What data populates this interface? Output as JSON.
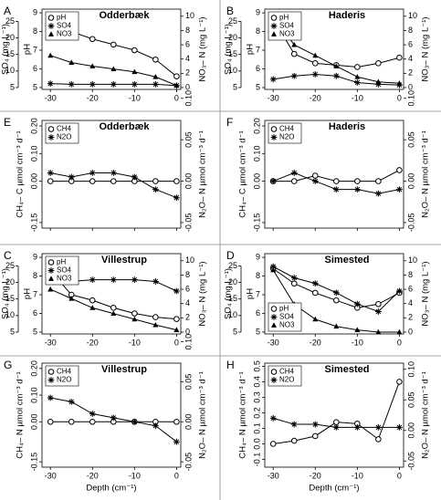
{
  "chart_data": [
    {
      "type": "line",
      "panel": "A",
      "title": "Odderbæk",
      "x": [
        -30,
        -25,
        -20,
        -15,
        -10,
        -5,
        0
      ],
      "xlim": [
        -32,
        1
      ],
      "xticks": [
        -30,
        -20,
        -10,
        0
      ],
      "xtick_labels": true,
      "ylabel": "pH",
      "ylim": [
        4.9,
        9.2
      ],
      "yticks": [
        5,
        6,
        7,
        8,
        9
      ],
      "y3label": "SO₄ (mg L⁻¹)",
      "y3lim": [
        4.44,
        28.7
      ],
      "y3ticks": [
        5,
        10,
        15,
        20,
        25
      ],
      "y2label": "NO₃– N (mg L⁻¹)",
      "y2lim": [
        -0.26,
        11.0
      ],
      "y2ticks": [
        0,
        2,
        4,
        6,
        8,
        10
      ],
      "legend": "upper left",
      "series": [
        {
          "name": "pH",
          "color": "#000",
          "marker": "circle",
          "axis": "y",
          "values": [
            8.4,
            8.0,
            7.6,
            7.3,
            7.0,
            6.5,
            5.6
          ]
        },
        {
          "name": "SO4",
          "color": "#000",
          "marker": "star",
          "axis": "y3",
          "values": [
            6.2,
            6.0,
            6.0,
            6.0,
            6.0,
            6.0,
            5.6
          ]
        },
        {
          "name": "NO3",
          "color": "#000",
          "marker": "triangle",
          "axis": "y2",
          "values": [
            4.5,
            3.5,
            3.0,
            2.6,
            2.2,
            1.5,
            0.3
          ]
        }
      ]
    },
    {
      "type": "line",
      "panel": "B",
      "title": "Haderis",
      "x": [
        -30,
        -25,
        -20,
        -15,
        -10,
        -5,
        0
      ],
      "xlim": [
        -32,
        1
      ],
      "xticks": [
        -30,
        -20,
        -10,
        0
      ],
      "xtick_labels": true,
      "ylabel": "pH",
      "ylim": [
        4.9,
        9.2
      ],
      "yticks": [
        5,
        6,
        7,
        8,
        9
      ],
      "y3label": "SO₄ (mg L⁻¹)",
      "y3lim": [
        4.44,
        28.7
      ],
      "y3ticks": [
        5,
        10,
        15,
        20,
        25
      ],
      "y2label": "NO₃– N (mg L⁻¹)",
      "y2lim": [
        -0.26,
        11.0
      ],
      "y2ticks": [
        0,
        2,
        4,
        6,
        8,
        10
      ],
      "legend": "upper left",
      "series": [
        {
          "name": "pH",
          "color": "#000",
          "marker": "circle",
          "axis": "y",
          "values": [
            8.7,
            6.8,
            6.3,
            6.2,
            6.1,
            6.3,
            6.6
          ]
        },
        {
          "name": "SO4",
          "color": "#000",
          "marker": "star",
          "axis": "y3",
          "values": [
            7.5,
            8.5,
            9.0,
            8.5,
            6.5,
            6.0,
            5.8
          ]
        },
        {
          "name": "NO3",
          "color": "#000",
          "marker": "triangle",
          "axis": "y2",
          "values": [
            10.0,
            6.0,
            4.5,
            3.0,
            1.5,
            0.8,
            0.6
          ]
        }
      ]
    },
    {
      "type": "line",
      "panel": "E",
      "title": "Odderbæk",
      "x": [
        -30,
        -25,
        -20,
        -15,
        -10,
        -5,
        0
      ],
      "xlim": [
        -32,
        1
      ],
      "xticks": [
        -30,
        -20,
        -10,
        0
      ],
      "xtick_labels": false,
      "ylabel": "CH₄– C µmol cm⁻³ d⁻¹",
      "ylim": [
        -0.17,
        0.22
      ],
      "yticks": [
        {
          "value": 0.2,
          "label": "0.20"
        },
        {
          "value": 0.1,
          "label": "0.10"
        },
        {
          "value": 0,
          "label": "0.00"
        },
        -0.15
      ],
      "y2label": "N₂O– N µmol cm⁻³ d⁻¹",
      "y2lim": [
        -0.0567,
        0.0733
      ],
      "y2ticks": [
        {
          "value": 0.1,
          "label": "0.10"
        },
        0.05,
        {
          "value": 0,
          "label": "0.00"
        },
        -0.05
      ],
      "legend": "upper left",
      "series": [
        {
          "name": "CH4",
          "color": "#000",
          "marker": "circle",
          "axis": "y",
          "values": [
            0,
            0,
            0,
            0,
            0,
            0,
            0
          ]
        },
        {
          "name": "N2O",
          "color": "#000",
          "marker": "star",
          "axis": "y2",
          "values": [
            0.01,
            0.005,
            0.01,
            0.01,
            0.005,
            -0.01,
            -0.02
          ]
        }
      ]
    },
    {
      "type": "line",
      "panel": "F",
      "title": "Haderis",
      "x": [
        -30,
        -25,
        -20,
        -15,
        -10,
        -5,
        0
      ],
      "xlim": [
        -32,
        1
      ],
      "xticks": [
        -30,
        -20,
        -10,
        0
      ],
      "xtick_labels": false,
      "ylabel": "CH₄– C µmol cm⁻³ d⁻¹",
      "ylim": [
        -0.17,
        0.22
      ],
      "yticks": [
        {
          "value": 0.2,
          "label": "0.20"
        },
        {
          "value": 0.1,
          "label": "0.10"
        },
        {
          "value": 0,
          "label": "0.00"
        },
        -0.15
      ],
      "y2label": "N₂O– N µmol cm⁻³ d⁻¹",
      "y2lim": [
        -0.0567,
        0.0733
      ],
      "y2ticks": [
        {
          "value": 0.1,
          "label": "0.10"
        },
        0.05,
        {
          "value": 0,
          "label": "0.00"
        },
        -0.05
      ],
      "legend": "upper left",
      "series": [
        {
          "name": "CH4",
          "color": "#000",
          "marker": "circle",
          "axis": "y",
          "values": [
            0,
            0,
            0.02,
            0,
            0,
            0,
            0.04
          ]
        },
        {
          "name": "N2O",
          "color": "#000",
          "marker": "star",
          "axis": "y2",
          "values": [
            0,
            0.01,
            0,
            -0.01,
            -0.01,
            -0.015,
            -0.01
          ]
        }
      ]
    },
    {
      "type": "line",
      "panel": "C",
      "title": "Villestrup",
      "x": [
        -30,
        -25,
        -20,
        -15,
        -10,
        -5,
        0
      ],
      "xlim": [
        -32,
        1
      ],
      "xticks": [
        -30,
        -20,
        -10,
        0
      ],
      "xtick_labels": true,
      "ylabel": "pH",
      "ylim": [
        4.9,
        9.2
      ],
      "yticks": [
        5,
        6,
        7,
        8,
        9
      ],
      "y3label": "SO₄ (mg L⁻¹)",
      "y3lim": [
        4.44,
        28.7
      ],
      "y3ticks": [
        5,
        10,
        15,
        20,
        25
      ],
      "y2label": "NO₃– N (mg L⁻¹)",
      "y2lim": [
        -0.26,
        11.0
      ],
      "y2ticks": [
        0,
        2,
        4,
        6,
        8,
        10
      ],
      "legend": "upper left",
      "series": [
        {
          "name": "pH",
          "color": "#000",
          "marker": "circle",
          "axis": "y",
          "values": [
            8.3,
            7.0,
            6.7,
            6.3,
            6.0,
            5.8,
            5.7
          ]
        },
        {
          "name": "SO4",
          "color": "#000",
          "marker": "star",
          "axis": "y3",
          "values": [
            20.8,
            20.3,
            20.8,
            20.8,
            20.8,
            20.3,
            17.4
          ]
        },
        {
          "name": "NO3",
          "color": "#000",
          "marker": "triangle",
          "axis": "y2",
          "values": [
            6.0,
            4.7,
            3.4,
            2.6,
            1.8,
            1.0,
            0.3
          ]
        }
      ]
    },
    {
      "type": "line",
      "panel": "D",
      "title": "Simested",
      "x": [
        -30,
        -25,
        -20,
        -15,
        -10,
        -5,
        0
      ],
      "xlim": [
        -32,
        1
      ],
      "xticks": [
        -30,
        -20,
        -10,
        0
      ],
      "xtick_labels": true,
      "ylabel": "pH",
      "ylim": [
        4.9,
        9.2
      ],
      "yticks": [
        5,
        6,
        7,
        8,
        9
      ],
      "y3label": "SO₄ (mg L⁻¹)",
      "y3lim": [
        4.44,
        28.7
      ],
      "y3ticks": [
        5,
        10,
        15,
        20,
        25
      ],
      "y2label": "NO₃– N (mg L⁻¹)",
      "y2lim": [
        -0.26,
        11.0
      ],
      "y2ticks": [
        0,
        2,
        4,
        6,
        8,
        10
      ],
      "legend": "lower left",
      "series": [
        {
          "name": "pH",
          "color": "#000",
          "marker": "circle",
          "axis": "y",
          "values": [
            8.4,
            7.6,
            7.1,
            6.7,
            6.3,
            6.5,
            7.1
          ]
        },
        {
          "name": "SO4",
          "color": "#000",
          "marker": "star",
          "axis": "y3",
          "values": [
            24.8,
            21.4,
            19.7,
            16.9,
            13.5,
            11.2,
            17.4
          ]
        },
        {
          "name": "NO3",
          "color": "#000",
          "marker": "triangle",
          "axis": "y2",
          "values": [
            8.7,
            3.9,
            1.8,
            0.8,
            0.3,
            0,
            0
          ]
        }
      ]
    },
    {
      "type": "line",
      "panel": "G",
      "title": "Villestrup",
      "x": [
        -30,
        -25,
        -20,
        -15,
        -10,
        -5,
        0
      ],
      "xlim": [
        -32,
        1
      ],
      "xticks": [
        -30,
        -20,
        -10,
        0
      ],
      "xtick_labels": true,
      "xlabel": "Depth (cm⁻¹)",
      "ylabel": "CH₄– N µmol cm⁻³ d⁻¹",
      "ylim": [
        -0.17,
        0.22
      ],
      "yticks": [
        {
          "value": 0.2,
          "label": "0.20"
        },
        {
          "value": 0.1,
          "label": "0.10"
        },
        {
          "value": 0,
          "label": "0.00"
        },
        -0.15
      ],
      "y2label": "N₂O– N µmol cm⁻³ d⁻¹",
      "y2lim": [
        -0.0567,
        0.0733
      ],
      "y2ticks": [
        {
          "value": 0.1,
          "label": "0.10"
        },
        0.05,
        {
          "value": 0,
          "label": "0.00"
        },
        -0.05
      ],
      "legend": "upper left",
      "series": [
        {
          "name": "CH4",
          "color": "#000",
          "marker": "circle",
          "axis": "y",
          "values": [
            0,
            0,
            0,
            0,
            0,
            0,
            0
          ]
        },
        {
          "name": "N2O",
          "color": "#000",
          "marker": "star",
          "axis": "y2",
          "values": [
            0.03,
            0.025,
            0.01,
            0.005,
            0,
            -0.005,
            -0.025
          ]
        }
      ]
    },
    {
      "type": "line",
      "panel": "H",
      "title": "Simested",
      "x": [
        -30,
        -25,
        -20,
        -15,
        -10,
        -5,
        0
      ],
      "xlim": [
        -32,
        1
      ],
      "xticks": [
        -30,
        -20,
        -10,
        0
      ],
      "xtick_labels": true,
      "xlabel": "Depth (cm⁻¹)",
      "ylabel": "CH₄– N µmol cm⁻³ d⁻¹",
      "ylim": [
        -0.15,
        0.52
      ],
      "yticks": [
        0.5,
        0.4,
        0.3,
        0.2,
        0.1,
        {
          "value": 0,
          "label": "0.0"
        },
        -0.1
      ],
      "y2label": "N₂O– N µmol cm⁻³ d⁻¹",
      "y2lim": [
        -0.06,
        0.11
      ],
      "y2ticks": [
        {
          "value": 0.1,
          "label": "0.10"
        },
        0.05,
        {
          "value": 0,
          "label": "0.00"
        },
        -0.05
      ],
      "legend": "upper left",
      "series": [
        {
          "name": "CH4",
          "color": "#000",
          "marker": "circle",
          "axis": "y",
          "values": [
            0,
            0.02,
            0.05,
            0.14,
            0.13,
            0.03,
            0.4
          ]
        },
        {
          "name": "N2O",
          "color": "#000",
          "marker": "star",
          "axis": "y2",
          "values": [
            0.02,
            0.01,
            0.01,
            0.005,
            0.005,
            0.005,
            0.005
          ]
        }
      ]
    }
  ]
}
